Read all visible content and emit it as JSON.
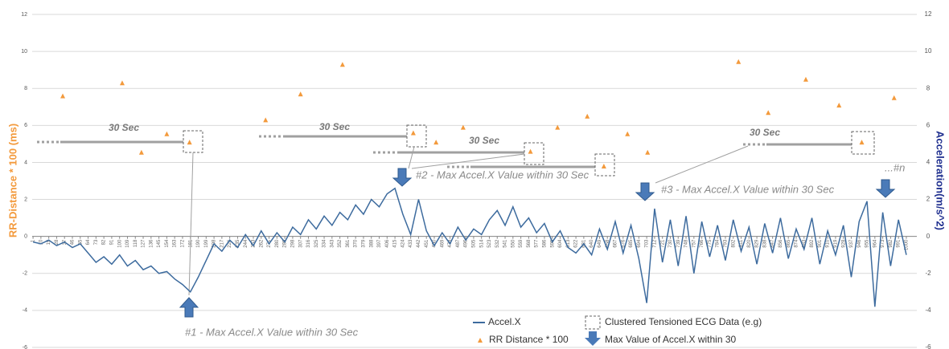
{
  "chart_data": {
    "type": "line",
    "y_label": "RR-Distance * 100 (ms)",
    "y2_label": "Acceleration(m/s^2)",
    "xlim": [
      0,
      1012
    ],
    "xticks": [
      1,
      10,
      19,
      28,
      37,
      46,
      55,
      64,
      73,
      82,
      91,
      100,
      109,
      118,
      127,
      136,
      145,
      154,
      163,
      172,
      181,
      190,
      199,
      208,
      217,
      226,
      235,
      244,
      253,
      262,
      271,
      280,
      289,
      298,
      307,
      316,
      325,
      334,
      343,
      352,
      361,
      370,
      379,
      388,
      397,
      406,
      415,
      424,
      433,
      442,
      451,
      460,
      469,
      478,
      487,
      496,
      505,
      514,
      523,
      532,
      541,
      550,
      559,
      568,
      577,
      586,
      595,
      604,
      613,
      622,
      631,
      640,
      649,
      658,
      667,
      676,
      685,
      694,
      703,
      712,
      721,
      730,
      739,
      748,
      757,
      766,
      775,
      784,
      793,
      802,
      811,
      820,
      829,
      838,
      847,
      856,
      865,
      874,
      883,
      892,
      901,
      910,
      919,
      928,
      937,
      946,
      955,
      964,
      973,
      982,
      991,
      1000
    ],
    "ylim": [
      -6,
      12
    ],
    "yticks": [
      -6,
      -4,
      -2,
      0,
      2,
      4,
      6,
      8,
      10,
      12
    ],
    "y2lim": [
      -6,
      12
    ],
    "y2ticks": [
      -6,
      -4,
      -2,
      0,
      2,
      4,
      6,
      8,
      10,
      12
    ],
    "grid": true,
    "series": [
      {
        "name": "Accel.X",
        "color": "#3d6b9e",
        "axis": "y2",
        "kind": "line",
        "x": [
          1,
          10,
          19,
          28,
          37,
          46,
          55,
          64,
          73,
          82,
          91,
          100,
          109,
          118,
          127,
          136,
          145,
          154,
          163,
          172,
          181,
          190,
          199,
          208,
          217,
          226,
          235,
          244,
          253,
          262,
          271,
          280,
          289,
          298,
          307,
          316,
          325,
          334,
          343,
          352,
          361,
          370,
          379,
          388,
          397,
          406,
          415,
          424,
          433,
          442,
          451,
          460,
          469,
          478,
          487,
          496,
          505,
          514,
          523,
          532,
          541,
          550,
          559,
          568,
          577,
          586,
          595,
          604,
          613,
          622,
          631,
          640,
          649,
          658,
          667,
          676,
          685,
          694,
          703,
          712,
          721,
          730,
          739,
          748,
          757,
          766,
          775,
          784,
          793,
          802,
          811,
          820,
          829,
          838,
          847,
          856,
          865,
          874,
          883,
          892,
          901,
          910,
          919,
          928,
          937,
          946,
          955,
          964,
          973,
          982,
          991,
          1000
        ],
        "values": [
          -0.3,
          -0.4,
          -0.2,
          -0.5,
          -0.3,
          -0.6,
          -0.4,
          -0.9,
          -1.4,
          -1.1,
          -1.5,
          -1.0,
          -1.6,
          -1.3,
          -1.8,
          -1.6,
          -2.0,
          -1.9,
          -2.3,
          -2.6,
          -3.0,
          -2.2,
          -1.3,
          -0.4,
          -0.8,
          -0.2,
          -0.6,
          0.1,
          -0.5,
          0.3,
          -0.4,
          0.2,
          -0.3,
          0.5,
          0.1,
          0.9,
          0.4,
          1.1,
          0.6,
          1.3,
          0.9,
          1.7,
          1.2,
          2.0,
          1.6,
          2.3,
          2.6,
          1.2,
          0.1,
          2.0,
          0.3,
          -0.5,
          0.2,
          -0.4,
          0.5,
          -0.2,
          0.4,
          0.1,
          0.9,
          1.4,
          0.6,
          1.6,
          0.5,
          1.0,
          0.2,
          0.7,
          -0.3,
          0.3,
          -0.6,
          -0.9,
          -0.4,
          -1.0,
          0.4,
          -0.7,
          0.8,
          -0.9,
          0.6,
          -1.2,
          -3.6,
          1.5,
          -1.4,
          0.9,
          -1.6,
          1.1,
          -2.0,
          0.8,
          -1.1,
          0.6,
          -1.3,
          0.9,
          -0.8,
          0.5,
          -1.5,
          0.7,
          -0.9,
          1.0,
          -1.2,
          0.4,
          -0.7,
          1.0,
          -1.5,
          0.3,
          -1.0,
          0.6,
          -2.2,
          0.8,
          1.9,
          -3.8,
          1.3,
          -1.6,
          0.9,
          -1.0
        ]
      },
      {
        "name": "RR Distance * 100",
        "color": "#f39a3c",
        "axis": "y",
        "kind": "scatter",
        "x": [
          35,
          103,
          125,
          154,
          180,
          267,
          307,
          355,
          436,
          462,
          493,
          570,
          601,
          635,
          654,
          681,
          704,
          808,
          842,
          885,
          923,
          949,
          986
        ],
        "values": [
          7.6,
          8.3,
          4.55,
          5.55,
          5.1,
          6.3,
          7.7,
          9.3,
          5.6,
          5.1,
          5.9,
          4.6,
          5.9,
          6.5,
          3.8,
          5.55,
          4.55,
          9.45,
          6.7,
          8.5,
          7.1,
          5.1,
          7.5
        ]
      }
    ],
    "legend_extra": [
      "Clustered Tensioned ECG Data (e.g)",
      "Max Value of Accel.X within 30"
    ],
    "annotations": [
      "30 Sec",
      "30 Sec",
      "30 Sec",
      "30 Sec",
      "#1 -  Max Accel.X Value  within 30 Sec",
      "#2 -  Max Accel.X Value  within 30 Sec",
      "#3 -  Max Accel.X Value  within 30 Sec",
      "...#n"
    ]
  }
}
